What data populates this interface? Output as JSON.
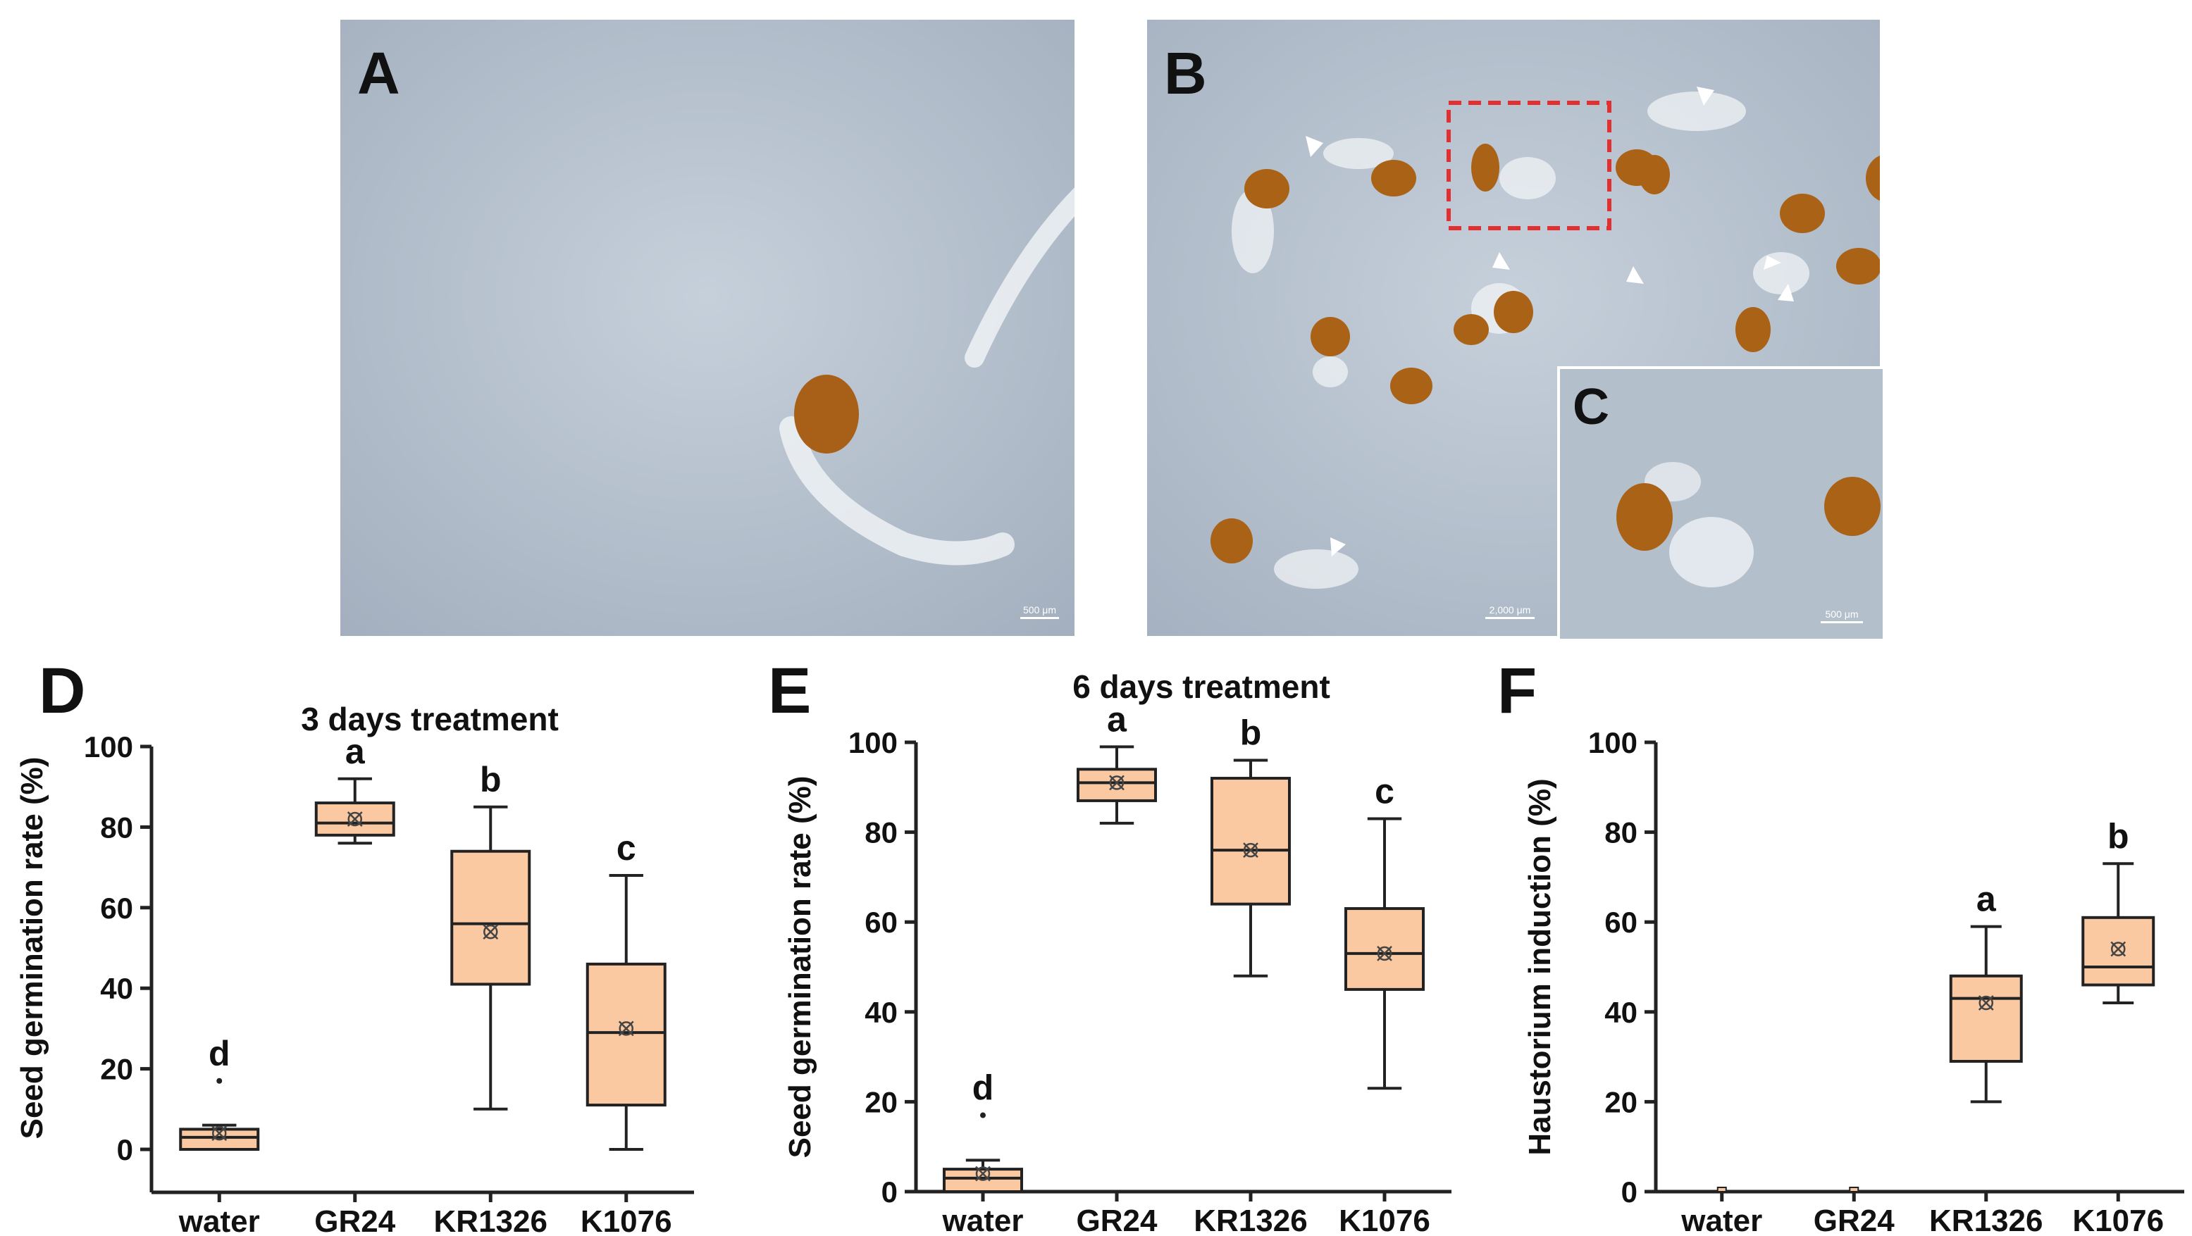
{
  "panels": {
    "a": {
      "label": "A",
      "scale": "500 μm"
    },
    "b": {
      "label": "B",
      "scale": "2,000 μm"
    },
    "c": {
      "label": "C",
      "scale": "500 μm"
    },
    "d": {
      "label": "D"
    },
    "e": {
      "label": "E"
    },
    "f": {
      "label": "F"
    }
  },
  "colors": {
    "box_fill": "#fac9a1",
    "box_stroke": "#222222",
    "photo_bg": "#b7c2cf",
    "seed": "#b0681a",
    "inset_border": "#e23030",
    "arrowhead": "#ffffff"
  },
  "chart_data": [
    {
      "type": "box",
      "title": "3 days treatment",
      "xlabel": "",
      "ylabel": "Seed germination rate (%)",
      "ylim": [
        0,
        100
      ],
      "yticks": [
        "0",
        "20",
        "40",
        "60",
        "80",
        "100"
      ],
      "categories": [
        "water",
        "GR24",
        "KR1326",
        "K1076"
      ],
      "boxes": [
        {
          "min": 0,
          "q1": 0,
          "median": 3,
          "q3": 5,
          "max": 6,
          "mean": 4,
          "outliers": [
            17
          ],
          "group": "d"
        },
        {
          "min": 76,
          "q1": 78,
          "median": 81,
          "q3": 86,
          "max": 92,
          "mean": 82,
          "outliers": [],
          "group": "a"
        },
        {
          "min": 10,
          "q1": 41,
          "median": 56,
          "q3": 74,
          "max": 85,
          "mean": 54,
          "outliers": [],
          "group": "b"
        },
        {
          "min": 0,
          "q1": 11,
          "median": 29,
          "q3": 46,
          "max": 68,
          "mean": 30,
          "outliers": [],
          "group": "c"
        }
      ]
    },
    {
      "type": "box",
      "title": "6 days treatment",
      "xlabel": "",
      "ylabel": "Seed germination rate (%)",
      "ylim": [
        0,
        100
      ],
      "yticks": [
        "0",
        "20",
        "40",
        "60",
        "80",
        "100"
      ],
      "categories": [
        "water",
        "GR24",
        "KR1326",
        "K1076"
      ],
      "boxes": [
        {
          "min": 0,
          "q1": 0,
          "median": 3,
          "q3": 5,
          "max": 7,
          "mean": 4,
          "outliers": [
            17
          ],
          "group": "d"
        },
        {
          "min": 82,
          "q1": 87,
          "median": 91,
          "q3": 94,
          "max": 99,
          "mean": 91,
          "outliers": [],
          "group": "a"
        },
        {
          "min": 48,
          "q1": 64,
          "median": 76,
          "q3": 92,
          "max": 96,
          "mean": 76,
          "outliers": [],
          "group": "b"
        },
        {
          "min": 23,
          "q1": 45,
          "median": 53,
          "q3": 63,
          "max": 83,
          "mean": 53,
          "outliers": [],
          "group": "c"
        }
      ]
    },
    {
      "type": "box",
      "title": "",
      "xlabel": "",
      "ylabel": "Haustorium induction (%)",
      "ylim": [
        0,
        100
      ],
      "yticks": [
        "0",
        "20",
        "40",
        "60",
        "80",
        "100"
      ],
      "categories": [
        "water",
        "GR24",
        "KR1326",
        "K1076"
      ],
      "boxes": [
        {
          "min": 0,
          "q1": 0,
          "median": 0,
          "q3": 0,
          "max": 0,
          "mean": 0,
          "outliers": [],
          "group": ""
        },
        {
          "min": 0,
          "q1": 0,
          "median": 0,
          "q3": 0,
          "max": 0,
          "mean": 0,
          "outliers": [],
          "group": ""
        },
        {
          "min": 20,
          "q1": 29,
          "median": 43,
          "q3": 48,
          "max": 59,
          "mean": 42,
          "outliers": [],
          "group": "a"
        },
        {
          "min": 42,
          "q1": 46,
          "median": 50,
          "q3": 61,
          "max": 73,
          "mean": 54,
          "outliers": [],
          "group": "b"
        }
      ]
    }
  ]
}
